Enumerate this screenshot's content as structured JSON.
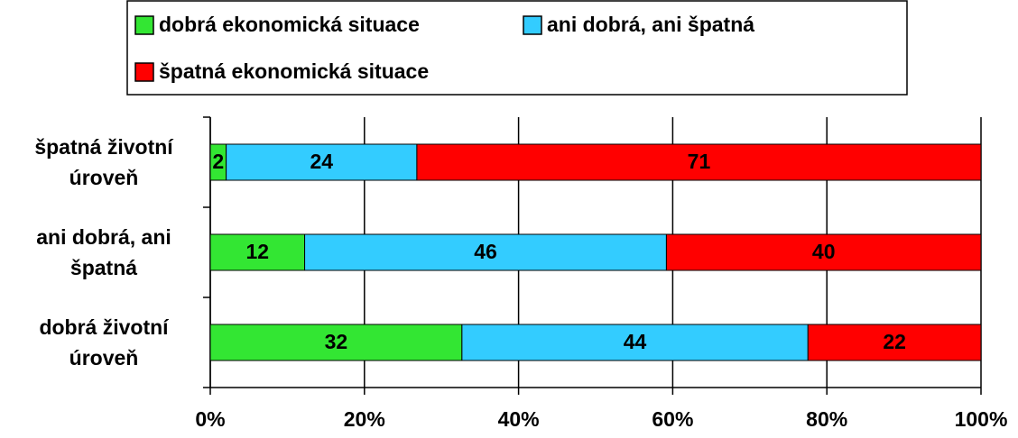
{
  "chart_data": {
    "type": "bar",
    "orientation": "horizontal",
    "stack": "percent",
    "categories": [
      "špatná životní úroveň",
      "ani dobrá, ani špatná",
      "dobrá životní úroveň"
    ],
    "series": [
      {
        "name": "dobrá ekonomická situace",
        "color": "#33e633",
        "values": [
          2,
          12,
          32
        ]
      },
      {
        "name": "ani dobrá, ani špatná",
        "color": "#33ccff",
        "values": [
          24,
          46,
          44
        ]
      },
      {
        "name": "špatná ekonomická situace",
        "color": "#ff0000",
        "values": [
          71,
          40,
          22
        ]
      }
    ],
    "xlim": [
      0,
      100
    ],
    "xticks": [
      {
        "value": 0,
        "label": "0%"
      },
      {
        "value": 20,
        "label": "20%"
      },
      {
        "value": 40,
        "label": "40%"
      },
      {
        "value": 60,
        "label": "60%"
      },
      {
        "value": 80,
        "label": "80%"
      },
      {
        "value": 100,
        "label": "100%"
      }
    ],
    "grid": true
  }
}
